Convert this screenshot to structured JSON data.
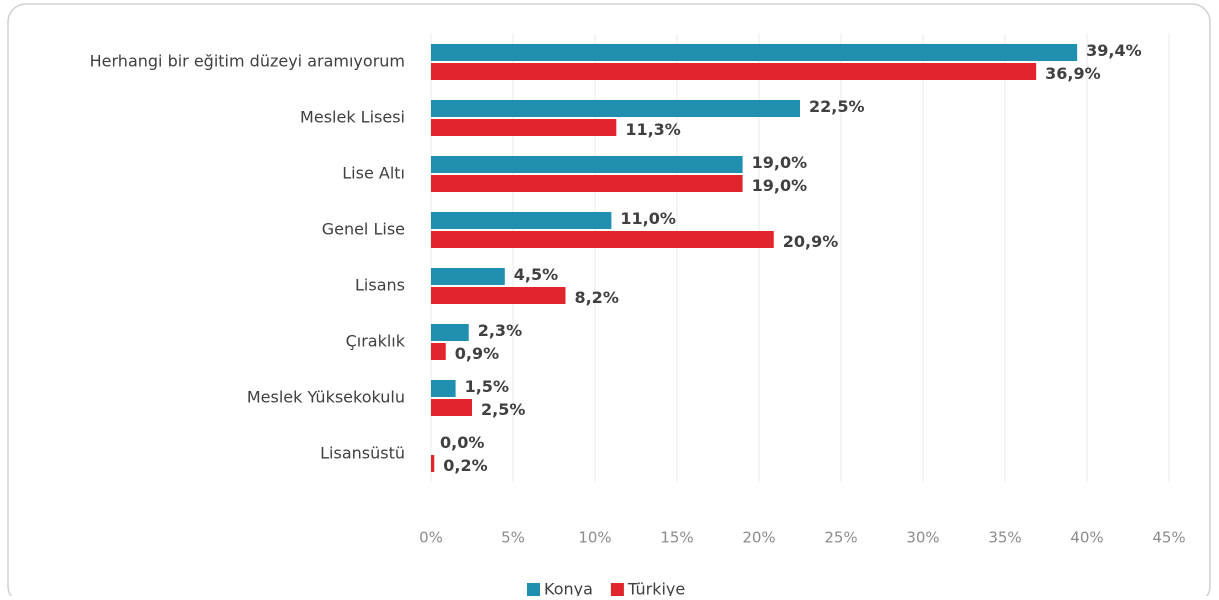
{
  "chart_data": {
    "type": "barh",
    "categories": [
      "Herhangi bir eğitim düzeyi aramıyorum",
      "Meslek Lisesi",
      "Lise Altı",
      "Genel Lise",
      "Lisans",
      "Çıraklık",
      "Meslek Yüksekokulu",
      "Lisansüstü"
    ],
    "series": [
      {
        "name": "Konya",
        "color": "#2190b0",
        "values": [
          39.4,
          22.5,
          19.0,
          11.0,
          4.5,
          2.3,
          1.5,
          0.0
        ],
        "value_labels": [
          "39,4%",
          "22,5%",
          "19,0%",
          "11,0%",
          "4,5%",
          "2,3%",
          "1,5%",
          "0,0%"
        ]
      },
      {
        "name": "Türkiye",
        "color": "#e0262c",
        "values": [
          36.9,
          11.3,
          19.0,
          20.9,
          8.2,
          0.9,
          2.5,
          0.2
        ],
        "value_labels": [
          "36,9%",
          "11,3%",
          "19,0%",
          "20,9%",
          "8,2%",
          "0,9%",
          "2,5%",
          "0,2%"
        ]
      }
    ],
    "xlim": [
      0,
      45
    ],
    "xticks": [
      {
        "value": 0,
        "label": "0%"
      },
      {
        "value": 5,
        "label": "5%"
      },
      {
        "value": 10,
        "label": "10%"
      },
      {
        "value": 15,
        "label": "15%"
      },
      {
        "value": 20,
        "label": "20%"
      },
      {
        "value": 25,
        "label": "25%"
      },
      {
        "value": 30,
        "label": "30%"
      },
      {
        "value": 35,
        "label": "35%"
      },
      {
        "value": 40,
        "label": "40%"
      },
      {
        "value": 45,
        "label": "45%"
      }
    ],
    "grid": true,
    "legend": "bottom"
  }
}
